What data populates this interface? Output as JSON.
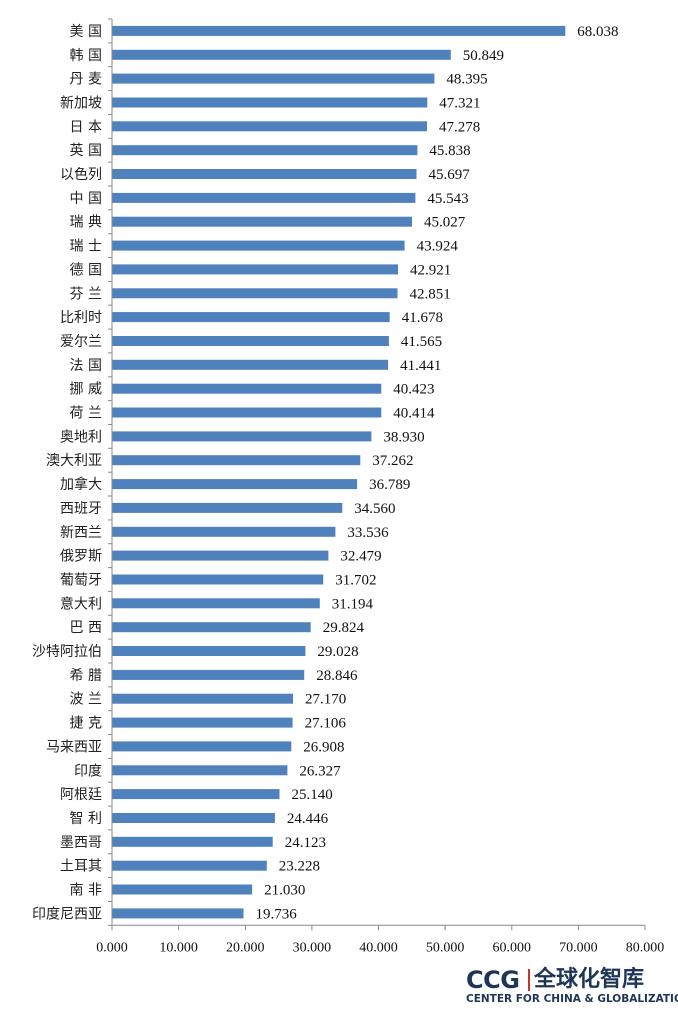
{
  "chart_data": {
    "type": "bar",
    "orientation": "horizontal",
    "categories": [
      "美 国",
      "韩 国",
      "丹 麦",
      "新加坡",
      "日 本",
      "英 国",
      "以色列",
      "中 国",
      "瑞 典",
      "瑞 士",
      "德 国",
      "芬 兰",
      "比利时",
      "爱尔兰",
      "法 国",
      "挪 威",
      "荷 兰",
      "奥地利",
      "澳大利亚",
      "加拿大",
      "西班牙",
      "新西兰",
      "俄罗斯",
      "葡萄牙",
      "意大利",
      "巴 西",
      "沙特阿拉伯",
      "希 腊",
      "波 兰",
      "捷 克",
      "马来西亚",
      "印度",
      "阿根廷",
      "智 利",
      "墨西哥",
      "土耳其",
      "南 非",
      "印度尼西亚"
    ],
    "values": [
      68.038,
      50.849,
      48.395,
      47.321,
      47.278,
      45.838,
      45.697,
      45.543,
      45.027,
      43.924,
      42.921,
      42.851,
      41.678,
      41.565,
      41.441,
      40.423,
      40.414,
      38.93,
      37.262,
      36.789,
      34.56,
      33.536,
      32.479,
      31.702,
      31.194,
      29.824,
      29.028,
      28.846,
      27.17,
      27.106,
      26.908,
      26.327,
      25.14,
      24.446,
      24.123,
      23.228,
      21.03,
      19.736
    ],
    "value_labels": [
      "68.038",
      "50.849",
      "48.395",
      "47.321",
      "47.278",
      "45.838",
      "45.697",
      "45.543",
      "45.027",
      "43.924",
      "42.921",
      "42.851",
      "41.678",
      "41.565",
      "41.441",
      "40.423",
      "40.414",
      "38.930",
      "37.262",
      "36.789",
      "34.560",
      "33.536",
      "32.479",
      "31.702",
      "31.194",
      "29.824",
      "29.028",
      "28.846",
      "27.170",
      "27.106",
      "26.908",
      "26.327",
      "25.140",
      "24.446",
      "24.123",
      "23.228",
      "21.030",
      "19.736"
    ],
    "xlim": [
      0,
      80
    ],
    "x_ticks": [
      "0.000",
      "10.000",
      "20.000",
      "30.000",
      "40.000",
      "50.000",
      "60.000",
      "70.000",
      "80.000"
    ],
    "grid": false,
    "bar_color": "#4f81bd"
  },
  "logo": {
    "ccg": "CCG",
    "cn": "全球化智库",
    "en": "CENTER FOR CHINA & GLOBALIZATION"
  }
}
